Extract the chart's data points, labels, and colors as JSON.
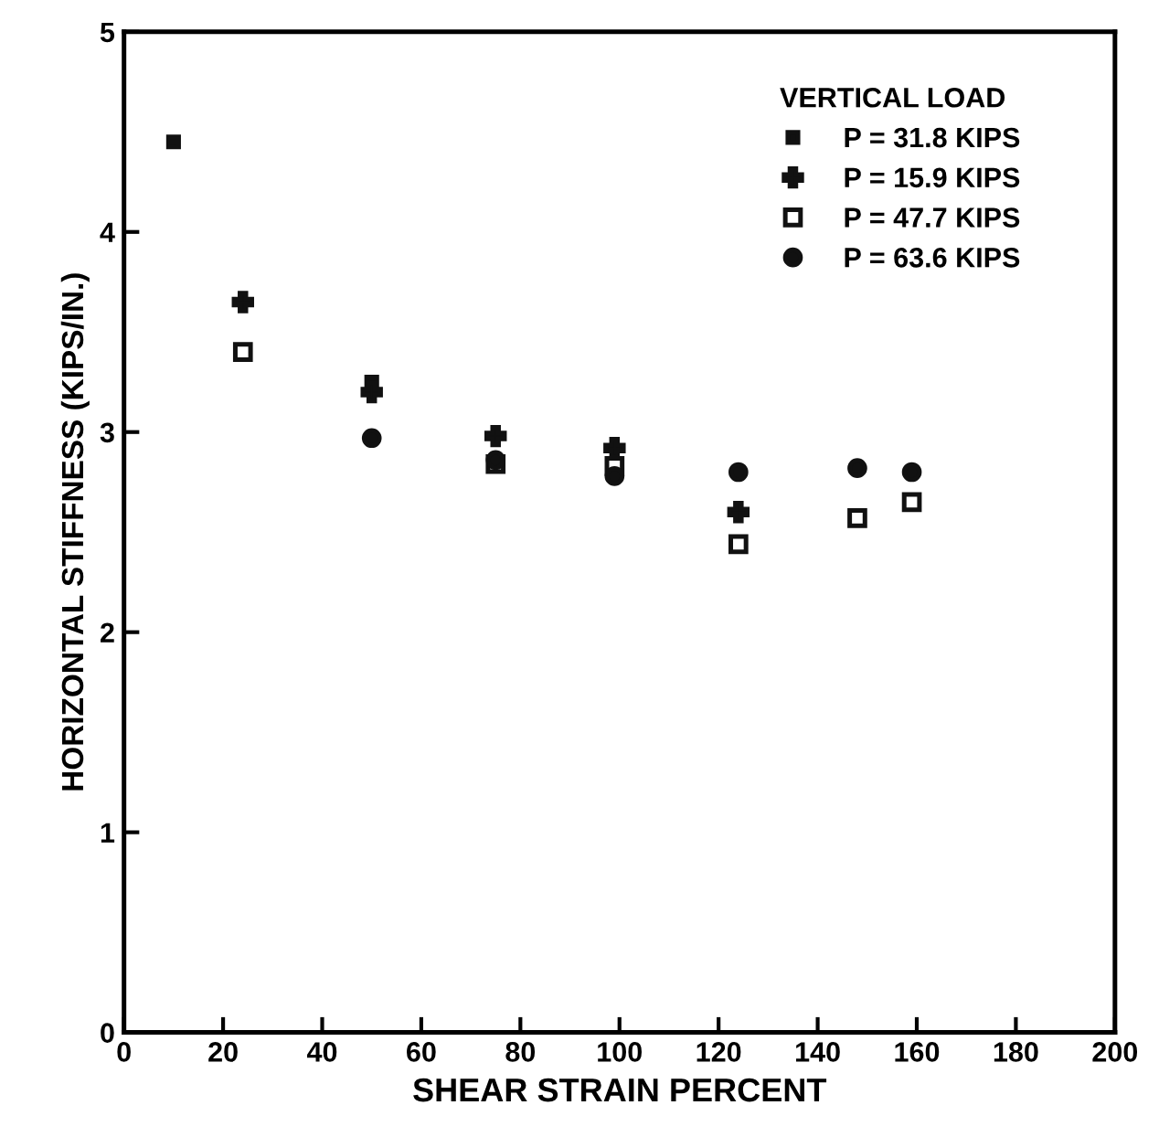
{
  "chart_data": {
    "type": "scatter",
    "xlabel": "SHEAR STRAIN PERCENT",
    "ylabel": "HORIZONTAL STIFFNESS (KIPS/IN.)",
    "legend_title": "VERTICAL LOAD",
    "legend": "top right",
    "xlim": [
      0,
      200
    ],
    "xticks": [
      0,
      20,
      40,
      60,
      80,
      100,
      120,
      140,
      160,
      180,
      200
    ],
    "ylim": [
      0,
      5
    ],
    "yticks": [
      0,
      1,
      2,
      3,
      4,
      5
    ],
    "grid": false,
    "series": [
      {
        "name": "P = 31.8 KIPS",
        "color": "#111111",
        "marker": "square",
        "x": [
          10,
          50
        ],
        "values": [
          4.45,
          3.25
        ]
      },
      {
        "name": "P = 15.9 KIPS",
        "color": "#111111",
        "marker": "cross",
        "x": [
          24,
          50,
          75,
          99,
          124
        ],
        "values": [
          3.65,
          3.2,
          2.98,
          2.92,
          2.6
        ]
      },
      {
        "name": "P = 47.7 KIPS",
        "color": "#111111",
        "marker": "square",
        "x": [
          24,
          50,
          75,
          99,
          124,
          148,
          159
        ],
        "values": [
          3.4,
          null,
          2.84,
          2.83,
          2.44,
          2.57,
          2.65
        ]
      },
      {
        "name": "P = 63.6 KIPS",
        "color": "#111111",
        "marker": "circle",
        "x": [
          50,
          75,
          99,
          124,
          148,
          159
        ],
        "values": [
          2.97,
          2.86,
          2.78,
          2.8,
          2.82,
          2.8
        ]
      }
    ]
  }
}
